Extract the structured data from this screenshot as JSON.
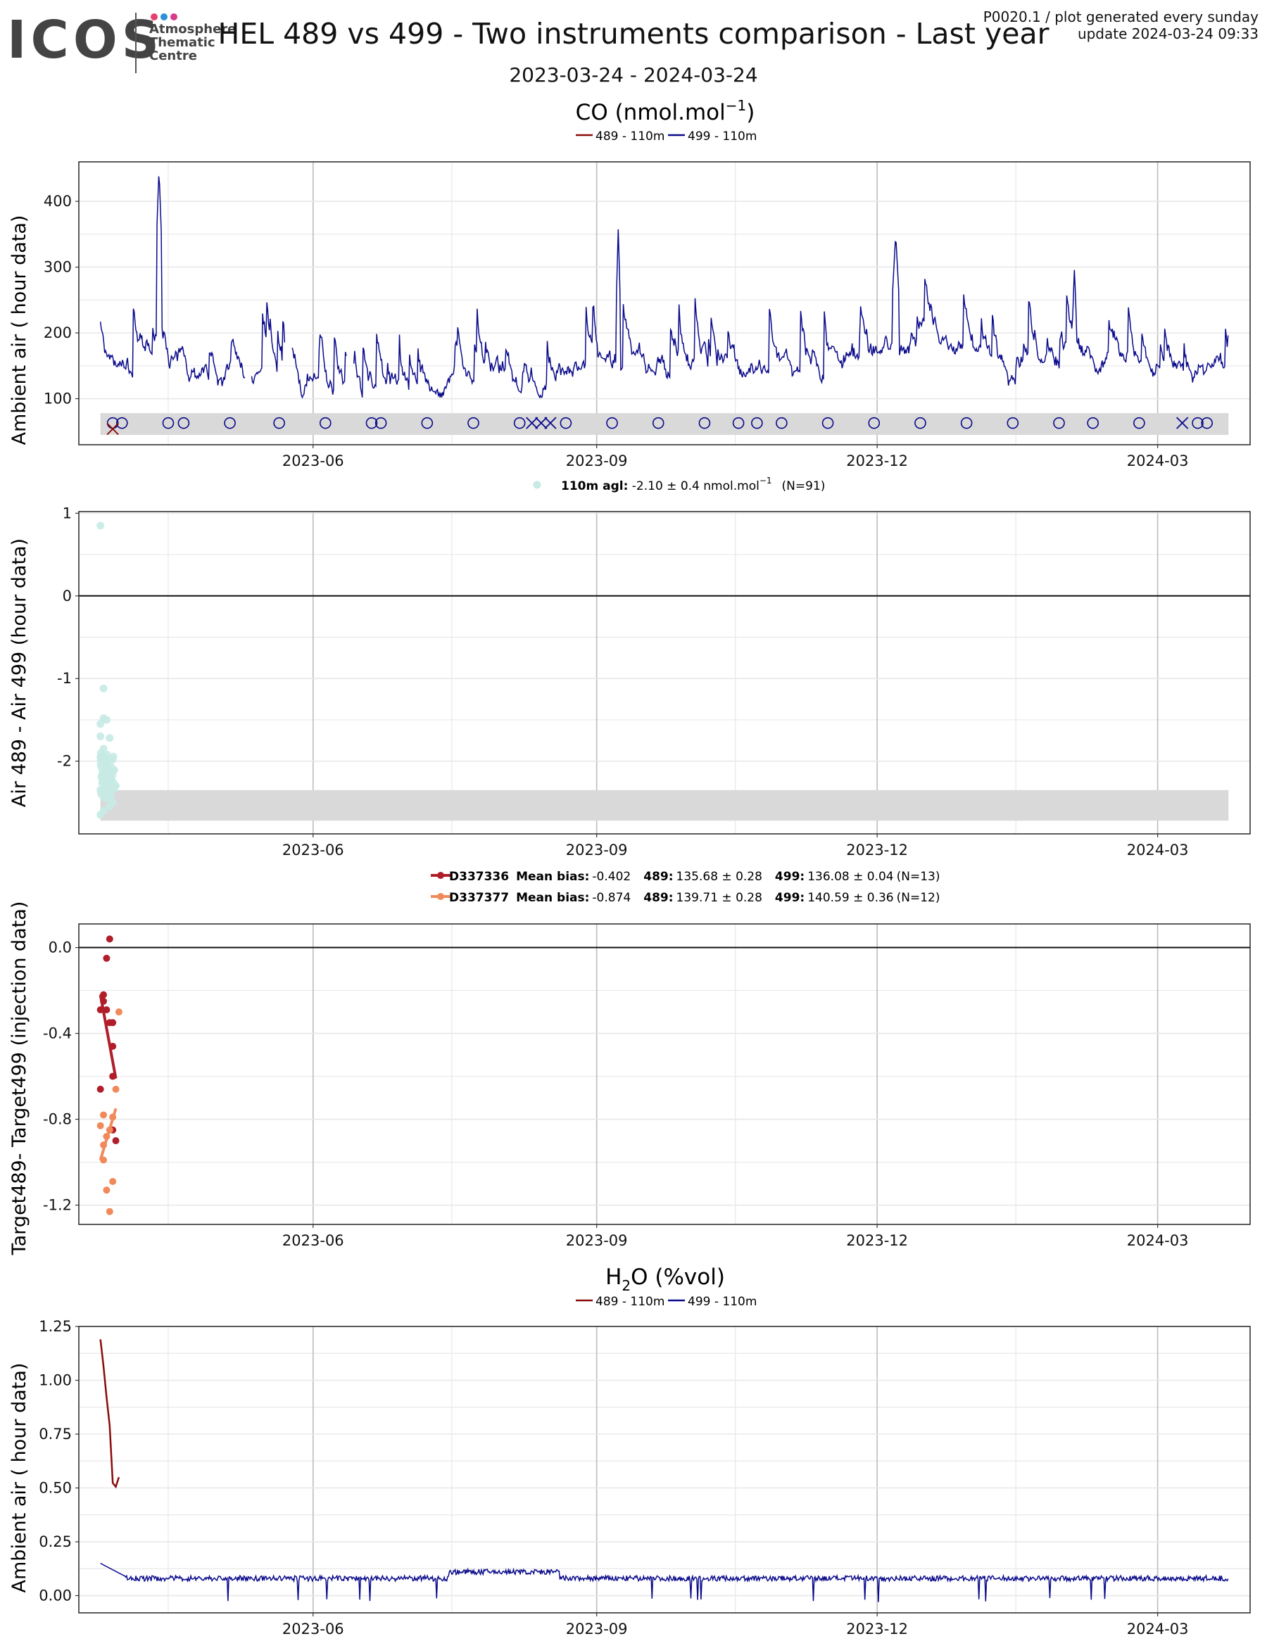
{
  "logo": {
    "brand": "ICOS",
    "lines": [
      "Atmosphere",
      "Thematic",
      "Centre"
    ],
    "dot_colors": [
      "#e8406e",
      "#2f8fd6",
      "#d63a8a"
    ]
  },
  "title": "HEL 489 vs 499 - Two instruments comparison - Last year",
  "corner": {
    "line1": "P0020.1 / plot generated every sunday",
    "line2": "update  2024-03-24 09:33"
  },
  "date_range": "2023-03-24 - 2024-03-24",
  "colors": {
    "inst489": "#8b0a0a",
    "inst499": "#0a0a8b",
    "bias_point": "#c7eae4",
    "target1": "#b01e2a",
    "target2": "#f08a5a",
    "band": "#d9d9d9",
    "grid_major": "#bdbdbd",
    "grid_minor": "#e8e8e8"
  },
  "chart_data": [
    {
      "type": "line",
      "section_title": "CO (nmol.mol",
      "section_title_sup": "−1",
      "section_title_end": ")",
      "legend": [
        "489 - 110m",
        "499 - 110m"
      ],
      "ylabel": "Ambient air ( hour data)",
      "x_ticks": [
        "2023-06",
        "2023-09",
        "2023-12",
        "2024-03"
      ],
      "ylim": [
        30,
        460
      ],
      "y_ticks": [
        100,
        200,
        300,
        400
      ],
      "series": [
        {
          "name": "499 - 110m",
          "values_by_month": [
            [
              "2023-03",
              128
            ],
            [
              "2023-04",
              175
            ],
            [
              "2023-05",
              140
            ],
            [
              "2023-06",
              112
            ],
            [
              "2023-07",
              135
            ],
            [
              "2023-08",
              140
            ],
            [
              "2023-09",
              175
            ],
            [
              "2023-10",
              155
            ],
            [
              "2023-11",
              160
            ],
            [
              "2023-12",
              210
            ],
            [
              "2024-01",
              150
            ],
            [
              "2024-02",
              175
            ],
            [
              "2024-03",
              160
            ]
          ],
          "peak": [
            "2023-04-12",
            450
          ]
        }
      ],
      "marker_band": [
        45,
        78
      ],
      "markers_circle": [
        "2023-03-28",
        "2023-03-31",
        "2023-04-15",
        "2023-04-20",
        "2023-05-05",
        "2023-05-21",
        "2023-06-05",
        "2023-06-20",
        "2023-06-23",
        "2023-07-08",
        "2023-07-23",
        "2023-08-07",
        "2023-08-22",
        "2023-09-06",
        "2023-09-21",
        "2023-10-06",
        "2023-10-17",
        "2023-10-23",
        "2023-10-31",
        "2023-11-15",
        "2023-11-30",
        "2023-12-15",
        "2023-12-30",
        "2024-01-14",
        "2024-01-29",
        "2024-02-09",
        "2024-02-24",
        "2024-03-14",
        "2024-03-17"
      ],
      "markers_cross": [
        "2023-08-11",
        "2023-08-14",
        "2023-08-17",
        "2024-03-09"
      ],
      "markers_cross_489": [
        "2023-03-28"
      ]
    },
    {
      "type": "scatter",
      "legend_label_bold": "110m agl:",
      "legend_label_rest": " -2.10 ± 0.4 nmol.mol",
      "legend_sup": "−1",
      "legend_n": "(N=91)",
      "ylabel": "Air 489 - Air 499 (hour data)",
      "x_ticks": [
        "2023-06",
        "2023-09",
        "2023-12",
        "2024-03"
      ],
      "ylim": [
        -2.88,
        1.02
      ],
      "y_ticks": [
        1,
        0,
        -1,
        -2
      ],
      "band": [
        -2.72,
        -2.35
      ],
      "points_sample": [
        [
          "2023-03-24",
          0.85
        ],
        [
          "2023-03-25",
          -1.12
        ],
        [
          "2023-03-25",
          -1.48
        ],
        [
          "2023-03-24",
          -1.55
        ],
        [
          "2023-03-26",
          -1.5
        ],
        [
          "2023-03-24",
          -1.7
        ],
        [
          "2023-03-25",
          -1.85
        ],
        [
          "2023-03-27",
          -1.72
        ],
        [
          "2023-03-24",
          -1.95
        ],
        [
          "2023-03-26",
          -2.05
        ],
        [
          "2023-03-28",
          -1.98
        ],
        [
          "2023-03-25",
          -2.15
        ],
        [
          "2023-03-27",
          -2.25
        ],
        [
          "2023-03-24",
          -2.35
        ],
        [
          "2023-03-26",
          -2.42
        ],
        [
          "2023-03-28",
          -2.5
        ],
        [
          "2023-03-25",
          -2.6
        ],
        [
          "2023-03-27",
          -2.55
        ],
        [
          "2023-03-24",
          -2.65
        ],
        [
          "2023-03-29",
          -2.3
        ]
      ]
    },
    {
      "type": "scatter",
      "legend": [
        {
          "id": "D337336",
          "bias_label": "Mean bias:",
          "bias": "-0.402",
          "i489_label": "489:",
          "i489": "135.68 ± 0.28",
          "i499_label": "499:",
          "i499": "136.08 ± 0.04",
          "n": "(N=13)"
        },
        {
          "id": "D337377",
          "bias_label": "Mean bias:",
          "bias": "-0.874",
          "i489_label": "489:",
          "i489": "139.71 ± 0.28",
          "i499_label": "499:",
          "i499": "140.59 ± 0.36",
          "n": "(N=12)"
        }
      ],
      "ylabel": "Target489- Target499 (injection data)",
      "x_ticks": [
        "2023-06",
        "2023-09",
        "2023-12",
        "2024-03"
      ],
      "ylim": [
        -1.29,
        0.11
      ],
      "y_ticks": [
        0.0,
        -0.4,
        -0.8,
        -1.2
      ],
      "series": [
        {
          "name": "D337336",
          "points": [
            [
              "2023-03-27",
              0.04
            ],
            [
              "2023-03-26",
              -0.05
            ],
            [
              "2023-03-25",
              -0.22
            ],
            [
              "2023-03-25",
              -0.25
            ],
            [
              "2023-03-24",
              -0.29
            ],
            [
              "2023-03-26",
              -0.29
            ],
            [
              "2023-03-27",
              -0.35
            ],
            [
              "2023-03-28",
              -0.35
            ],
            [
              "2023-03-28",
              -0.46
            ],
            [
              "2023-03-28",
              -0.6
            ],
            [
              "2023-03-24",
              -0.66
            ],
            [
              "2023-03-28",
              -0.85
            ],
            [
              "2023-03-29",
              -0.9
            ]
          ],
          "trend": [
            [
              "2023-03-24",
              -0.22
            ],
            [
              "2023-03-29",
              -0.61
            ]
          ]
        },
        {
          "name": "D337377",
          "points": [
            [
              "2023-03-30",
              -0.3
            ],
            [
              "2023-03-25",
              -0.78
            ],
            [
              "2023-03-28",
              -0.79
            ],
            [
              "2023-03-24",
              -0.83
            ],
            [
              "2023-03-27",
              -0.85
            ],
            [
              "2023-03-26",
              -0.88
            ],
            [
              "2023-03-25",
              -0.92
            ],
            [
              "2023-03-29",
              -0.66
            ],
            [
              "2023-03-25",
              -0.99
            ],
            [
              "2023-03-28",
              -1.09
            ],
            [
              "2023-03-26",
              -1.13
            ],
            [
              "2023-03-27",
              -1.23
            ]
          ],
          "trend": [
            [
              "2023-03-24",
              -0.99
            ],
            [
              "2023-03-29",
              -0.75
            ]
          ]
        }
      ]
    },
    {
      "type": "line",
      "section_title": "H",
      "section_title_sub": "2",
      "section_title_end": "O (%vol)",
      "legend": [
        "489 - 110m",
        "499 - 110m"
      ],
      "ylabel": "Ambient air ( hour data)",
      "x_ticks": [
        "2023-06",
        "2023-09",
        "2023-12",
        "2024-03"
      ],
      "ylim": [
        -0.08,
        1.25
      ],
      "y_ticks": [
        1.25,
        1.0,
        0.75,
        0.5,
        0.25,
        0.0
      ],
      "y_tick_labels": [
        "1.25",
        "1.00",
        "0.75",
        "0.50",
        "0.25",
        "0.00"
      ],
      "series": [
        {
          "name": "489 - 110m",
          "points": [
            [
              "2023-03-24",
              1.19
            ],
            [
              "2023-03-25",
              1.05
            ],
            [
              "2023-03-26",
              0.95
            ],
            [
              "2023-03-27",
              0.78
            ],
            [
              "2023-03-28",
              0.55
            ],
            [
              "2023-03-29",
              0.48
            ],
            [
              "2023-03-30",
              0.55
            ]
          ]
        },
        {
          "name": "499 - 110m",
          "level": 0.08,
          "start": 0.15
        }
      ]
    }
  ]
}
